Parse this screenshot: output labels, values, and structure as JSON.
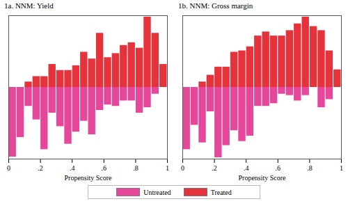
{
  "chart_data": [
    {
      "type": "bar",
      "title": "1a. NNM: Yield",
      "xlabel": "Propensity Score",
      "bins": [
        0,
        0.05,
        0.1,
        0.15,
        0.2,
        0.25,
        0.3,
        0.35,
        0.4,
        0.45,
        0.5,
        0.55,
        0.6,
        0.65,
        0.7,
        0.75,
        0.8,
        0.85,
        0.9,
        0.95,
        1
      ],
      "series": [
        {
          "name": "Untreated",
          "color": "#e5479a",
          "values": [
            -103,
            -74,
            -28,
            -48,
            -92,
            -38,
            -58,
            -84,
            -66,
            -50,
            -70,
            -34,
            -26,
            -28,
            -20,
            -20,
            -38,
            -30,
            -10,
            0
          ]
        },
        {
          "name": "Treated",
          "color": "#e5323b",
          "values": [
            0,
            0,
            8,
            16,
            16,
            34,
            25,
            25,
            32,
            52,
            42,
            80,
            44,
            50,
            62,
            66,
            58,
            104,
            80,
            34
          ]
        }
      ],
      "xlim": [
        0,
        1
      ],
      "xticks": [
        0,
        {
          "value": 0.2,
          "label": ".2"
        },
        {
          "value": 0.4,
          "label": ".4"
        },
        {
          "value": 0.6,
          "label": ".6"
        },
        {
          "value": 0.8,
          "label": ".8"
        },
        1
      ],
      "ylim": [
        -106,
        106
      ],
      "tick_labels": "x",
      "legend": "bottom"
    },
    {
      "type": "bar",
      "title": "1b. NNM: Gross margin",
      "xlabel": "Propensity Score",
      "bins": [
        0,
        0.05,
        0.1,
        0.15,
        0.2,
        0.25,
        0.3,
        0.35,
        0.4,
        0.45,
        0.5,
        0.55,
        0.6,
        0.65,
        0.7,
        0.75,
        0.8,
        0.85,
        0.9,
        0.95,
        1
      ],
      "series": [
        {
          "name": "Untreated",
          "color": "#e5479a",
          "values": [
            -92,
            -56,
            -82,
            -36,
            -104,
            -86,
            -64,
            -80,
            -72,
            -28,
            -28,
            -24,
            -10,
            -12,
            -20,
            -12,
            0,
            -30,
            -18,
            0
          ]
        },
        {
          "name": "Treated",
          "color": "#e5323b",
          "values": [
            0,
            0,
            8,
            18,
            30,
            30,
            52,
            54,
            60,
            76,
            82,
            76,
            76,
            84,
            94,
            104,
            90,
            84,
            54,
            26
          ]
        }
      ],
      "xlim": [
        0,
        1
      ],
      "xticks": [
        0,
        {
          "value": 0.2,
          "label": ".2"
        },
        {
          "value": 0.4,
          "label": ".4"
        },
        {
          "value": 0.6,
          "label": ".6"
        },
        {
          "value": 0.8,
          "label": ".8"
        },
        1
      ],
      "ylim": [
        -106,
        106
      ],
      "tick_labels": "x",
      "legend": "bottom"
    }
  ]
}
